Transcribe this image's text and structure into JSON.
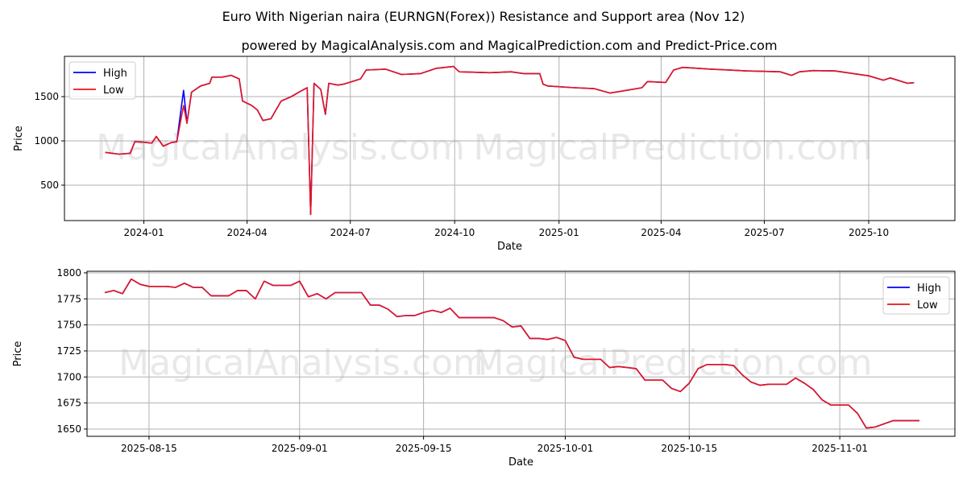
{
  "title": "Euro With Nigerian naira (EURNGN(Forex)) Resistance and Support area (Nov 12)",
  "subtitle": "powered by MagicalAnalysis.com and MagicalPrediction.com and Predict-Price.com",
  "watermarks": [
    "MagicalAnalysis.com",
    "MagicalPrediction.com"
  ],
  "colors": {
    "high": "#0000ff",
    "low": "#e8141c"
  },
  "chart_data": [
    {
      "type": "line",
      "xlabel": "Date",
      "ylabel": "Price",
      "xlim": [
        "2023-10-23",
        "2025-12-16"
      ],
      "ylim": [
        100,
        1955
      ],
      "xticks": [
        "2024-01",
        "2024-04",
        "2024-07",
        "2024-10",
        "2025-01",
        "2025-04",
        "2025-07",
        "2025-10"
      ],
      "yticks": [
        500,
        1000,
        1500
      ],
      "legend": "top-left",
      "grid": true,
      "series_names": [
        "High",
        "Low"
      ],
      "dates": [
        "2023-11-28",
        "2023-12-10",
        "2023-12-20",
        "2023-12-24",
        "2024-01-01",
        "2024-01-08",
        "2024-01-12",
        "2024-01-18",
        "2024-01-25",
        "2024-01-30",
        "2024-02-05",
        "2024-02-08",
        "2024-02-12",
        "2024-02-20",
        "2024-02-28",
        "2024-03-01",
        "2024-03-10",
        "2024-03-18",
        "2024-03-25",
        "2024-03-28",
        "2024-04-05",
        "2024-04-10",
        "2024-04-15",
        "2024-04-22",
        "2024-05-01",
        "2024-05-10",
        "2024-05-18",
        "2024-05-24",
        "2024-05-27",
        "2024-05-30",
        "2024-06-05",
        "2024-06-09",
        "2024-06-12",
        "2024-06-20",
        "2024-06-25",
        "2024-07-10",
        "2024-07-15",
        "2024-08-01",
        "2024-08-15",
        "2024-09-01",
        "2024-09-15",
        "2024-09-30",
        "2024-10-05",
        "2024-11-01",
        "2024-11-20",
        "2024-12-01",
        "2024-12-15",
        "2024-12-18",
        "2024-12-22",
        "2025-01-15",
        "2025-02-01",
        "2025-02-15",
        "2025-03-01",
        "2025-03-15",
        "2025-03-20",
        "2025-04-05",
        "2025-04-12",
        "2025-04-20",
        "2025-05-15",
        "2025-06-15",
        "2025-07-15",
        "2025-07-25",
        "2025-08-01",
        "2025-08-13",
        "2025-09-01",
        "2025-10-01",
        "2025-10-14",
        "2025-10-20",
        "2025-11-04",
        "2025-11-10"
      ],
      "low": [
        870,
        850,
        860,
        990,
        985,
        975,
        1050,
        940,
        980,
        990,
        1400,
        1200,
        1550,
        1620,
        1650,
        1720,
        1720,
        1740,
        1700,
        1450,
        1400,
        1350,
        1230,
        1250,
        1450,
        1500,
        1560,
        1600,
        170,
        1650,
        1580,
        1300,
        1650,
        1630,
        1640,
        1700,
        1800,
        1810,
        1750,
        1760,
        1820,
        1840,
        1780,
        1770,
        1780,
        1760,
        1760,
        1640,
        1620,
        1600,
        1590,
        1540,
        1570,
        1600,
        1670,
        1660,
        1800,
        1830,
        1810,
        1790,
        1780,
        1740,
        1780,
        1794,
        1790,
        1735,
        1686,
        1711,
        1651,
        1658
      ],
      "high": [
        870,
        850,
        860,
        990,
        985,
        975,
        1050,
        940,
        980,
        990,
        1570,
        1200,
        1550,
        1620,
        1650,
        1720,
        1720,
        1740,
        1700,
        1450,
        1400,
        1350,
        1230,
        1250,
        1450,
        1500,
        1560,
        1600,
        170,
        1650,
        1580,
        1300,
        1650,
        1630,
        1640,
        1700,
        1800,
        1810,
        1750,
        1760,
        1820,
        1840,
        1780,
        1770,
        1780,
        1760,
        1760,
        1640,
        1620,
        1600,
        1590,
        1540,
        1570,
        1600,
        1670,
        1660,
        1800,
        1830,
        1810,
        1790,
        1780,
        1740,
        1780,
        1794,
        1790,
        1735,
        1686,
        1711,
        1651,
        1658
      ]
    },
    {
      "type": "line",
      "xlabel": "Date",
      "ylabel": "Price",
      "xlim": [
        "2025-08-08",
        "2025-11-14"
      ],
      "ylim": [
        1643,
        1801.5
      ],
      "xticks": [
        "2025-08-15",
        "2025-09-01",
        "2025-09-15",
        "2025-10-01",
        "2025-10-15",
        "2025-11-01"
      ],
      "yticks": [
        1650,
        1675,
        1700,
        1725,
        1750,
        1775,
        1800
      ],
      "legend": "top-right",
      "grid": true,
      "series_names": [
        "High",
        "Low"
      ],
      "start_date": "2025-08-10",
      "low": [
        1781,
        1783,
        1780,
        1794,
        1789,
        1787,
        1787,
        1787,
        1786,
        1790,
        1786,
        1786,
        1778,
        1778,
        1778,
        1783,
        1783,
        1775,
        1792,
        1788,
        1788,
        1788,
        1792,
        1777,
        1780,
        1775,
        1781,
        1781,
        1781,
        1781,
        1769,
        1769,
        1765,
        1758,
        1759,
        1759,
        1762,
        1764,
        1762,
        1766,
        1757,
        1757,
        1757,
        1757,
        1757,
        1754,
        1748,
        1749,
        1737,
        1737,
        1736,
        1738,
        1735,
        1719,
        1717,
        1717,
        1717,
        1709,
        1710,
        1709,
        1708,
        1697,
        1697,
        1697,
        1689,
        1686,
        1694,
        1708,
        1712,
        1712,
        1712,
        1711,
        1702,
        1695,
        1692,
        1693,
        1693,
        1693,
        1699,
        1694,
        1688,
        1678,
        1673,
        1673,
        1673,
        1665,
        1651,
        1652,
        1655,
        1658,
        1658,
        1658,
        1658
      ],
      "high": [
        1781,
        1783,
        1780,
        1794,
        1789,
        1787,
        1787,
        1787,
        1786,
        1790,
        1786,
        1786,
        1778,
        1778,
        1778,
        1783,
        1783,
        1775,
        1792,
        1788,
        1788,
        1788,
        1792,
        1777,
        1780,
        1775,
        1781,
        1781,
        1781,
        1781,
        1769,
        1769,
        1765,
        1758,
        1759,
        1759,
        1762,
        1764,
        1762,
        1766,
        1757,
        1757,
        1757,
        1757,
        1757,
        1754,
        1748,
        1749,
        1737,
        1737,
        1736,
        1738,
        1735,
        1719,
        1717,
        1717,
        1717,
        1709,
        1710,
        1709,
        1708,
        1697,
        1697,
        1697,
        1689,
        1686,
        1694,
        1708,
        1712,
        1712,
        1712,
        1711,
        1702,
        1695,
        1692,
        1693,
        1693,
        1693,
        1699,
        1694,
        1688,
        1678,
        1673,
        1673,
        1673,
        1665,
        1651,
        1652,
        1655,
        1658,
        1658,
        1658,
        1658
      ]
    }
  ]
}
